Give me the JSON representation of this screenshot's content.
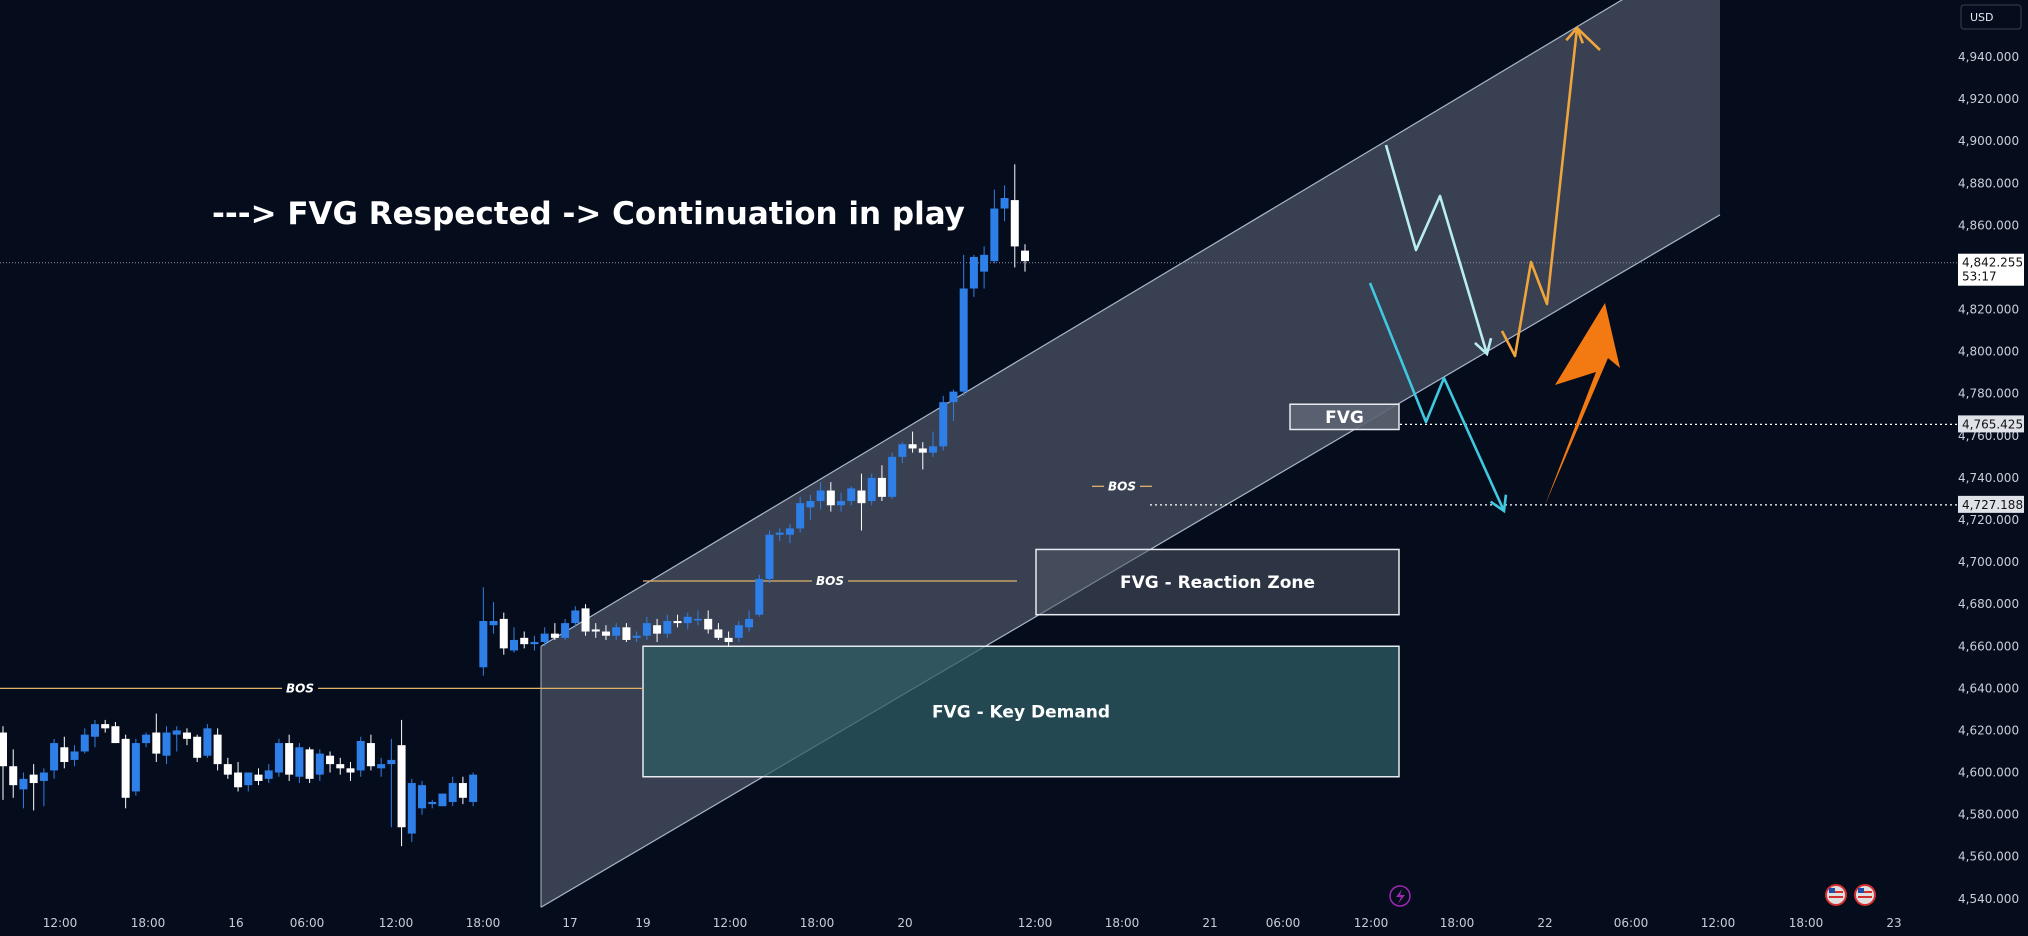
{
  "chart_data": {
    "type": "candlestick",
    "currency": "USD",
    "headline": "---> FVG Respected -> Continuation in play",
    "y_ticks": [
      4540,
      4560,
      4580,
      4600,
      4620,
      4640,
      4660,
      4680,
      4700,
      4720,
      4740,
      4760,
      4780,
      4800,
      4820,
      4840,
      4860,
      4880,
      4900,
      4920,
      4940
    ],
    "y_tick_labels": [
      "4,540.000",
      "4,560.000",
      "4,580.000",
      "4,600.000",
      "4,620.000",
      "4,640.000",
      "4,660.000",
      "4,680.000",
      "4,700.000",
      "4,720.000",
      "4,740.000",
      "4,760.000",
      "4,780.000",
      "4,800.000",
      "4,820.000",
      "4,840.000",
      "4,860.000",
      "4,880.000",
      "4,900.000",
      "4,920.000",
      "4,940.000"
    ],
    "ylim": [
      4527,
      4965
    ],
    "x_labels": [
      "12:00",
      "18:00",
      "16",
      "06:00",
      "12:00",
      "18:00",
      "17",
      "19",
      "12:00",
      "18:00",
      "20",
      "12:00",
      "18:00",
      "21",
      "06:00",
      "12:00",
      "18:00",
      "22",
      "06:00",
      "12:00",
      "18:00",
      "23"
    ],
    "price_tags": [
      {
        "label": "current",
        "value": "4,842.255",
        "sub": "53:17",
        "price": 4842.255
      },
      {
        "label": "level-1",
        "value": "4,765.425",
        "price": 4765.425
      },
      {
        "label": "level-2",
        "value": "4,727.188",
        "price": 4727.188
      }
    ],
    "zones": [
      {
        "label": "FVG - Key Demand",
        "top": 4660,
        "bottom": 4598,
        "color": "#2d5c63"
      },
      {
        "label": "FVG - Reaction Zone",
        "top": 4706,
        "bottom": 4675,
        "color": "#4e5564"
      },
      {
        "label": "FVG",
        "top": 4775,
        "bottom": 4763,
        "color": "#5d6472"
      }
    ],
    "bos_labels": [
      {
        "label": "BOS",
        "price": 4640
      },
      {
        "label": "BOS",
        "price": 4691
      },
      {
        "label": "BOS",
        "price": 4736
      }
    ],
    "channel": {
      "lower_start": 4536,
      "lower_end": 4865,
      "upper_start": 4660,
      "upper_end": 4995
    },
    "candles": [
      {
        "o": 4619,
        "h": 4622,
        "l": 4587,
        "c": 4603
      },
      {
        "o": 4603,
        "h": 4611,
        "l": 4588,
        "c": 4594
      },
      {
        "o": 4592,
        "h": 4600,
        "l": 4583,
        "c": 4597
      },
      {
        "o": 4599,
        "h": 4604,
        "l": 4582,
        "c": 4595
      },
      {
        "o": 4596,
        "h": 4602,
        "l": 4584,
        "c": 4600
      },
      {
        "o": 4601,
        "h": 4616,
        "l": 4597,
        "c": 4614
      },
      {
        "o": 4612,
        "h": 4617,
        "l": 4602,
        "c": 4605
      },
      {
        "o": 4606,
        "h": 4613,
        "l": 4603,
        "c": 4610
      },
      {
        "o": 4610,
        "h": 4621,
        "l": 4609,
        "c": 4618
      },
      {
        "o": 4617,
        "h": 4625,
        "l": 4612,
        "c": 4623
      },
      {
        "o": 4623,
        "h": 4625,
        "l": 4619,
        "c": 4621
      },
      {
        "o": 4622,
        "h": 4624,
        "l": 4614,
        "c": 4614
      },
      {
        "o": 4616,
        "h": 4618,
        "l": 4583,
        "c": 4588
      },
      {
        "o": 4591,
        "h": 4616,
        "l": 4589,
        "c": 4614
      },
      {
        "o": 4614,
        "h": 4619,
        "l": 4612,
        "c": 4618
      },
      {
        "o": 4619,
        "h": 4628,
        "l": 4605,
        "c": 4609
      },
      {
        "o": 4608,
        "h": 4622,
        "l": 4604,
        "c": 4619
      },
      {
        "o": 4618,
        "h": 4622,
        "l": 4610,
        "c": 4620
      },
      {
        "o": 4619,
        "h": 4621,
        "l": 4613,
        "c": 4616
      },
      {
        "o": 4617,
        "h": 4618,
        "l": 4605,
        "c": 4607
      },
      {
        "o": 4608,
        "h": 4623,
        "l": 4607,
        "c": 4621
      },
      {
        "o": 4618,
        "h": 4621,
        "l": 4601,
        "c": 4604
      },
      {
        "o": 4604,
        "h": 4607,
        "l": 4597,
        "c": 4599
      },
      {
        "o": 4600,
        "h": 4605,
        "l": 4591,
        "c": 4593
      },
      {
        "o": 4594,
        "h": 4600,
        "l": 4591,
        "c": 4600
      },
      {
        "o": 4599,
        "h": 4602,
        "l": 4594,
        "c": 4596
      },
      {
        "o": 4597,
        "h": 4604,
        "l": 4595,
        "c": 4601
      },
      {
        "o": 4600,
        "h": 4616,
        "l": 4598,
        "c": 4614
      },
      {
        "o": 4614,
        "h": 4618,
        "l": 4596,
        "c": 4599
      },
      {
        "o": 4598,
        "h": 4614,
        "l": 4595,
        "c": 4612
      },
      {
        "o": 4611,
        "h": 4612,
        "l": 4595,
        "c": 4597
      },
      {
        "o": 4599,
        "h": 4611,
        "l": 4596,
        "c": 4609
      },
      {
        "o": 4608,
        "h": 4610,
        "l": 4600,
        "c": 4604
      },
      {
        "o": 4604,
        "h": 4607,
        "l": 4599,
        "c": 4602
      },
      {
        "o": 4602,
        "h": 4605,
        "l": 4596,
        "c": 4600
      },
      {
        "o": 4601,
        "h": 4617,
        "l": 4598,
        "c": 4615
      },
      {
        "o": 4614,
        "h": 4618,
        "l": 4601,
        "c": 4603
      },
      {
        "o": 4602,
        "h": 4607,
        "l": 4598,
        "c": 4604
      },
      {
        "o": 4604,
        "h": 4616,
        "l": 4574,
        "c": 4606
      },
      {
        "o": 4613,
        "h": 4625,
        "l": 4565,
        "c": 4574
      },
      {
        "o": 4571,
        "h": 4597,
        "l": 4567,
        "c": 4595
      },
      {
        "o": 4583,
        "h": 4596,
        "l": 4580,
        "c": 4594
      },
      {
        "o": 4585,
        "h": 4587,
        "l": 4583,
        "c": 4586
      },
      {
        "o": 4584,
        "h": 4590,
        "l": 4584,
        "c": 4590
      },
      {
        "o": 4586,
        "h": 4598,
        "l": 4584,
        "c": 4595
      },
      {
        "o": 4595,
        "h": 4598,
        "l": 4585,
        "c": 4588
      },
      {
        "o": 4586,
        "h": 4600,
        "l": 4584,
        "c": 4599
      },
      {
        "o": 4650,
        "h": 4688,
        "l": 4646,
        "c": 4672
      },
      {
        "o": 4670,
        "h": 4681,
        "l": 4666,
        "c": 4672
      },
      {
        "o": 4673,
        "h": 4676,
        "l": 4656,
        "c": 4659
      },
      {
        "o": 4658,
        "h": 4669,
        "l": 4657,
        "c": 4663
      },
      {
        "o": 4664,
        "h": 4667,
        "l": 4659,
        "c": 4661
      },
      {
        "o": 4661,
        "h": 4665,
        "l": 4658,
        "c": 4662
      },
      {
        "o": 4662,
        "h": 4669,
        "l": 4660,
        "c": 4666
      },
      {
        "o": 4666,
        "h": 4671,
        "l": 4663,
        "c": 4664
      },
      {
        "o": 4664,
        "h": 4673,
        "l": 4663,
        "c": 4671
      },
      {
        "o": 4671,
        "h": 4679,
        "l": 4669,
        "c": 4677
      },
      {
        "o": 4678,
        "h": 4680,
        "l": 4665,
        "c": 4667
      },
      {
        "o": 4668,
        "h": 4671,
        "l": 4664,
        "c": 4667
      },
      {
        "o": 4667,
        "h": 4670,
        "l": 4663,
        "c": 4665
      },
      {
        "o": 4665,
        "h": 4671,
        "l": 4663,
        "c": 4669
      },
      {
        "o": 4669,
        "h": 4671,
        "l": 4662,
        "c": 4663
      },
      {
        "o": 4664,
        "h": 4667,
        "l": 4662,
        "c": 4665
      },
      {
        "o": 4665,
        "h": 4674,
        "l": 4663,
        "c": 4671
      },
      {
        "o": 4670,
        "h": 4673,
        "l": 4662,
        "c": 4666
      },
      {
        "o": 4666,
        "h": 4675,
        "l": 4664,
        "c": 4672
      },
      {
        "o": 4672,
        "h": 4675,
        "l": 4669,
        "c": 4671
      },
      {
        "o": 4671,
        "h": 4676,
        "l": 4668,
        "c": 4674
      },
      {
        "o": 4673,
        "h": 4677,
        "l": 4670,
        "c": 4673
      },
      {
        "o": 4673,
        "h": 4677,
        "l": 4666,
        "c": 4668
      },
      {
        "o": 4668,
        "h": 4671,
        "l": 4663,
        "c": 4664
      },
      {
        "o": 4664,
        "h": 4667,
        "l": 4660,
        "c": 4662
      },
      {
        "o": 4664,
        "h": 4672,
        "l": 4662,
        "c": 4670
      },
      {
        "o": 4669,
        "h": 4677,
        "l": 4667,
        "c": 4673
      },
      {
        "o": 4675,
        "h": 4694,
        "l": 4674,
        "c": 4692
      },
      {
        "o": 4692,
        "h": 4715,
        "l": 4690,
        "c": 4713
      },
      {
        "o": 4713,
        "h": 4716,
        "l": 4710,
        "c": 4714
      },
      {
        "o": 4713,
        "h": 4718,
        "l": 4709,
        "c": 4716
      },
      {
        "o": 4716,
        "h": 4731,
        "l": 4714,
        "c": 4728
      },
      {
        "o": 4726,
        "h": 4732,
        "l": 4720,
        "c": 4729
      },
      {
        "o": 4729,
        "h": 4738,
        "l": 4725,
        "c": 4734
      },
      {
        "o": 4734,
        "h": 4738,
        "l": 4724,
        "c": 4727
      },
      {
        "o": 4727,
        "h": 4733,
        "l": 4724,
        "c": 4729
      },
      {
        "o": 4729,
        "h": 4736,
        "l": 4727,
        "c": 4735
      },
      {
        "o": 4734,
        "h": 4742,
        "l": 4715,
        "c": 4728
      },
      {
        "o": 4729,
        "h": 4742,
        "l": 4727,
        "c": 4740
      },
      {
        "o": 4740,
        "h": 4746,
        "l": 4729,
        "c": 4731
      },
      {
        "o": 4731,
        "h": 4752,
        "l": 4730,
        "c": 4750
      },
      {
        "o": 4750,
        "h": 4757,
        "l": 4747,
        "c": 4756
      },
      {
        "o": 4756,
        "h": 4762,
        "l": 4752,
        "c": 4754
      },
      {
        "o": 4754,
        "h": 4757,
        "l": 4744,
        "c": 4752
      },
      {
        "o": 4752,
        "h": 4762,
        "l": 4750,
        "c": 4755
      },
      {
        "o": 4755,
        "h": 4779,
        "l": 4753,
        "c": 4776
      },
      {
        "o": 4776,
        "h": 4782,
        "l": 4767,
        "c": 4781
      },
      {
        "o": 4781,
        "h": 4846,
        "l": 4779,
        "c": 4830
      },
      {
        "o": 4830,
        "h": 4846,
        "l": 4826,
        "c": 4845
      },
      {
        "o": 4838,
        "h": 4850,
        "l": 4830,
        "c": 4846
      },
      {
        "o": 4843,
        "h": 4877,
        "l": 4842,
        "c": 4868
      },
      {
        "o": 4868,
        "h": 4879,
        "l": 4862,
        "c": 4873
      },
      {
        "o": 4872,
        "h": 4889,
        "l": 4840,
        "c": 4850
      },
      {
        "o": 4848,
        "h": 4851,
        "l": 4838,
        "c": 4843
      }
    ]
  }
}
